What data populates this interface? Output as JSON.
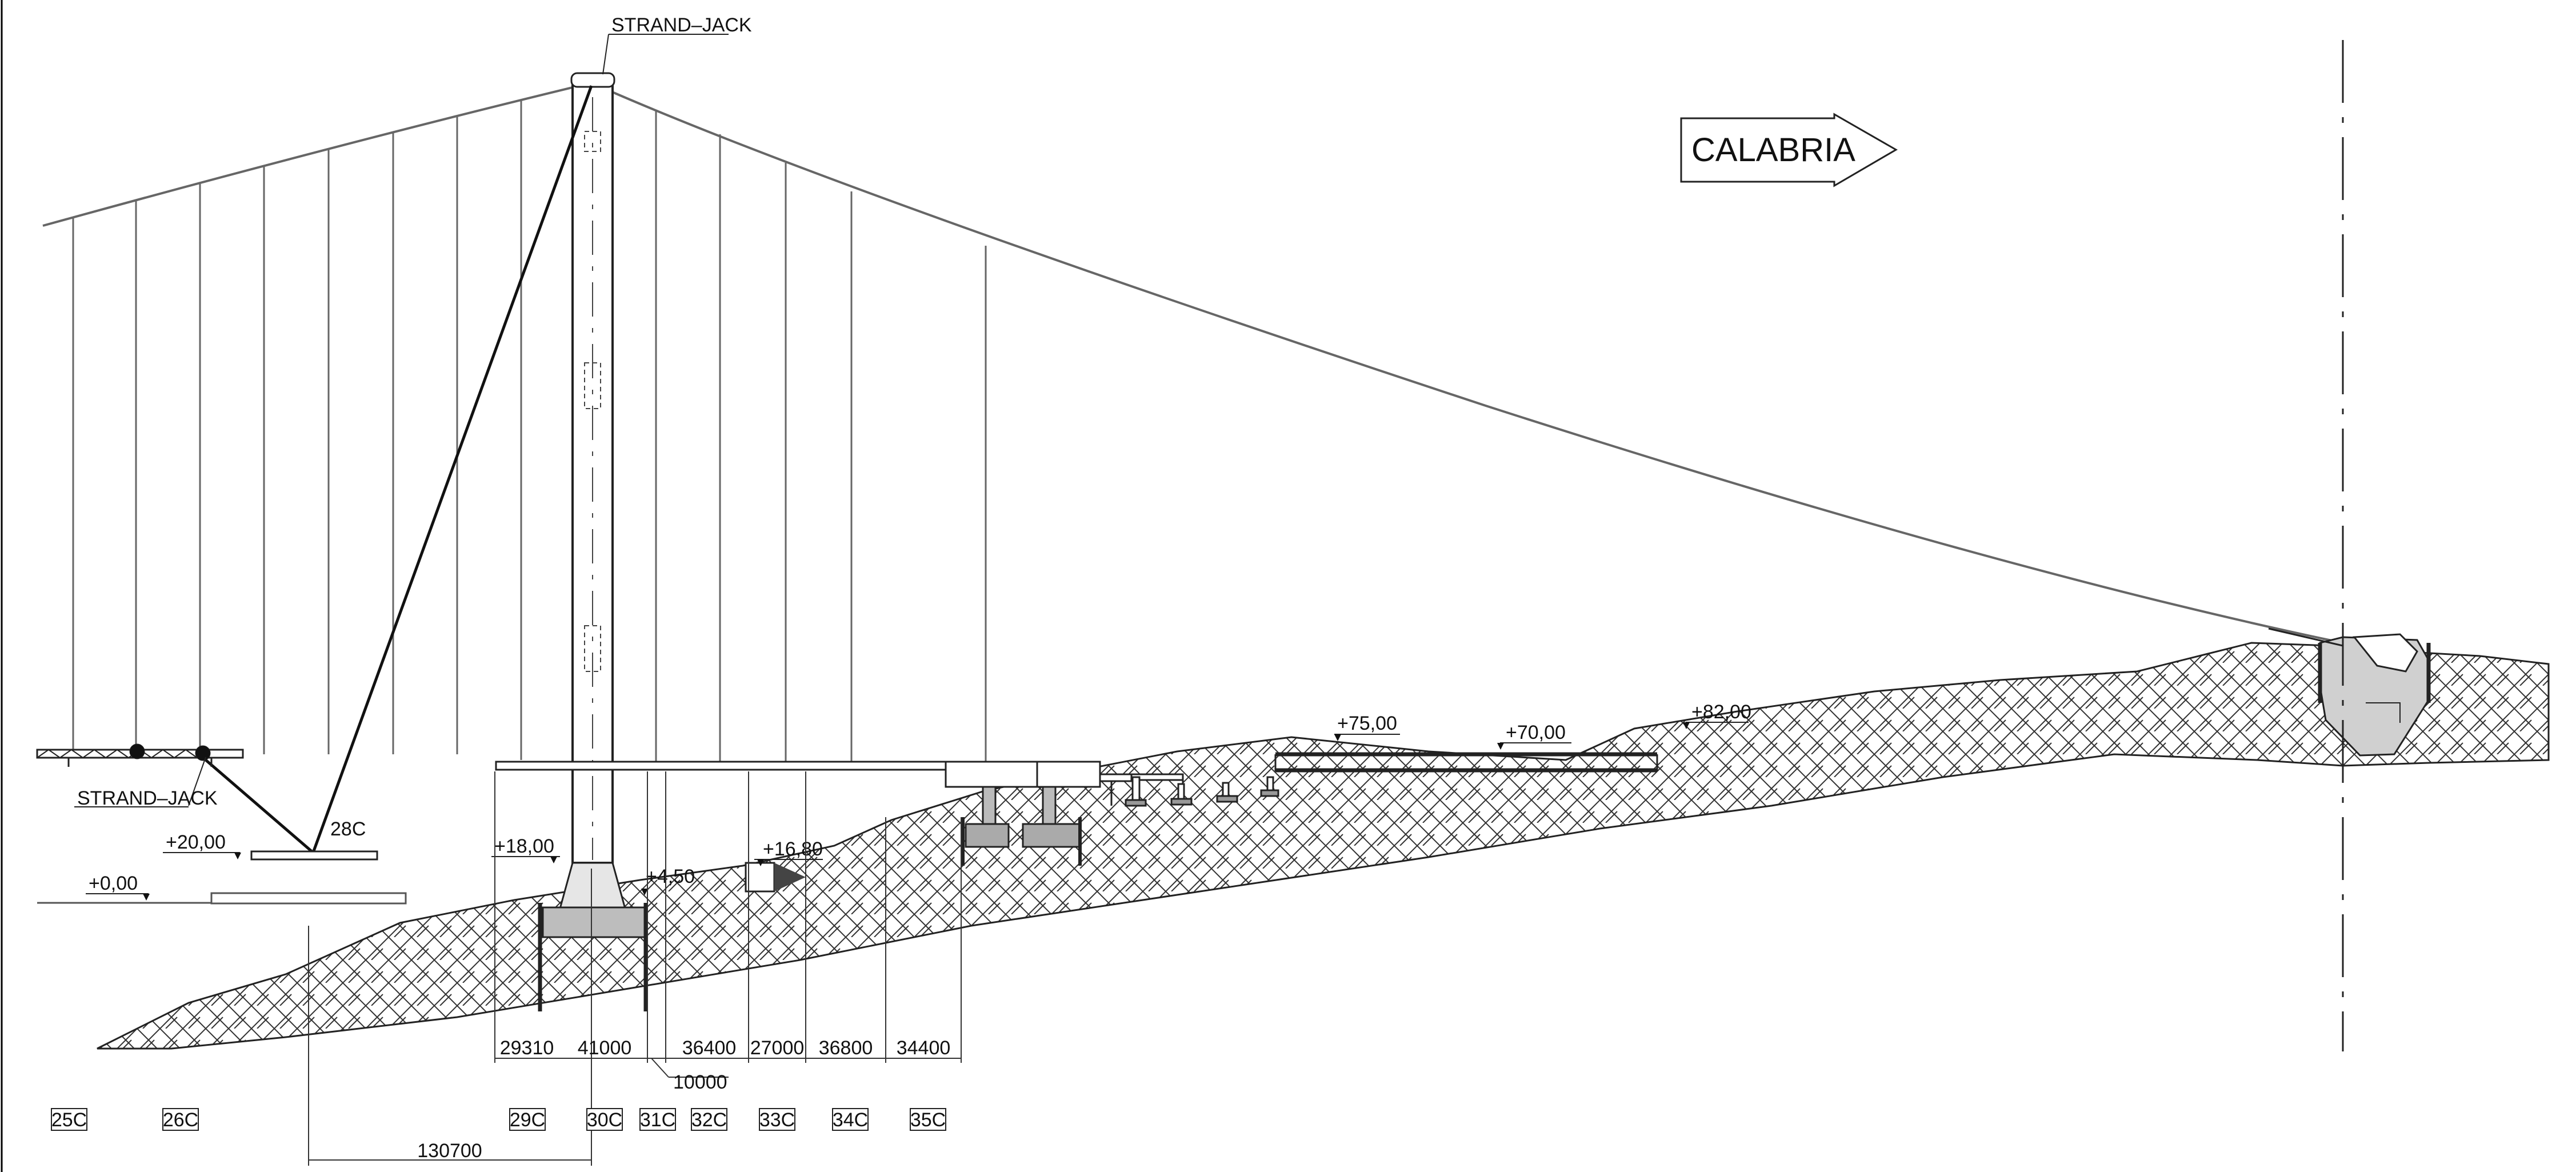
{
  "direction_label": "CALABRIA",
  "strand_jack_top": "STRAND–JACK",
  "strand_jack_left": "STRAND–JACK",
  "elevations": {
    "e0": "+0,00",
    "e20": "+20,00",
    "e18": "+18,00",
    "e450": "+4,50",
    "e1680": "+16,80",
    "e75": "+75,00",
    "e70": "+70,00",
    "e82": "+82,00"
  },
  "anchor_label": "28C",
  "spans": [
    "29310",
    "41000",
    "36400",
    "27000",
    "36800",
    "34400"
  ],
  "dim_10000": "10000",
  "dim_130700": "130700",
  "sections": [
    "25C",
    "26C",
    "29C",
    "30C",
    "31C",
    "32C",
    "33C",
    "34C",
    "35C"
  ]
}
